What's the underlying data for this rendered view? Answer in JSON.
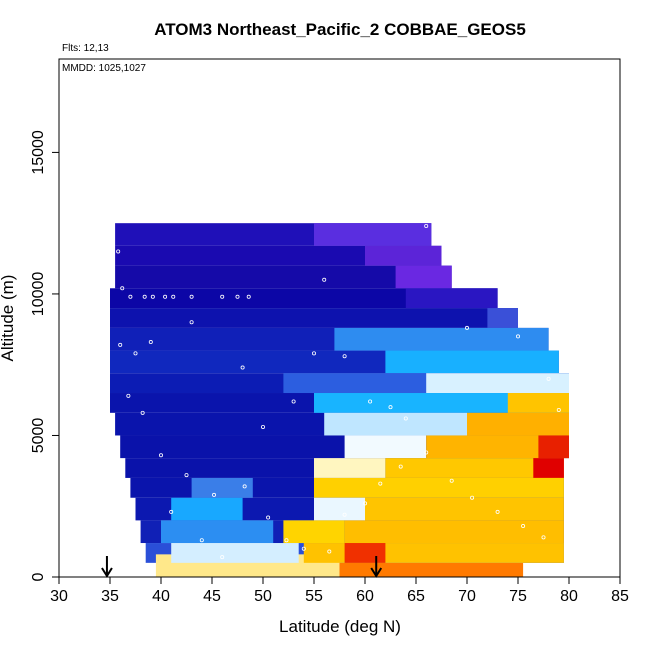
{
  "chart_data": {
    "type": "heatmap",
    "title": "ATOM3 Northeast_Pacific_2 COBBAE_GEOS5",
    "annotations": {
      "flights": "Flts: 12,13",
      "dates": "MMDD: 1025,1027"
    },
    "xlabel": "Latitude (deg N)",
    "ylabel": "Altitude (m)",
    "xlim": [
      30,
      85
    ],
    "ylim": [
      0,
      18300
    ],
    "x_ticks": [
      "30",
      "35",
      "40",
      "45",
      "50",
      "55",
      "60",
      "65",
      "70",
      "75",
      "80",
      "85"
    ],
    "y_ticks": [
      "0",
      "5000",
      "10000",
      "15000"
    ],
    "grid": false,
    "legend": "none",
    "colors": {
      "navy": "#0000aa",
      "blue": "#1a3fd6",
      "cyan": "#00b0ff",
      "pale": "#d8f1ff",
      "yellow": "#ffd700",
      "orange": "#ff8c00",
      "red": "#e00000",
      "purple": "#8a2be2"
    },
    "cells_note": "curtain cells: latitude band [lat_min, lat_max], altitude band [alt_min, alt_max] in metres, colour",
    "cells": [
      [
        35.5,
        66.5,
        11700,
        12500,
        "#1f10b8"
      ],
      [
        35.5,
        67.5,
        11000,
        11700,
        "#1a0ab0"
      ],
      [
        35.5,
        68.5,
        10200,
        11000,
        "#150aa8"
      ],
      [
        35.0,
        73.0,
        9500,
        10200,
        "#0c06a6"
      ],
      [
        35.0,
        75.0,
        8800,
        9500,
        "#0d12ae"
      ],
      [
        35.0,
        78.0,
        8000,
        8800,
        "#1020b8"
      ],
      [
        35.0,
        79.0,
        7200,
        8000,
        "#1028be"
      ],
      [
        35.0,
        80.0,
        6500,
        7200,
        "#0c1cb4"
      ],
      [
        35.0,
        80.0,
        5800,
        6500,
        "#0a14ac"
      ],
      [
        35.5,
        80.0,
        5000,
        5800,
        "#0a14ac"
      ],
      [
        36.0,
        80.0,
        4200,
        5000,
        "#0a12aa"
      ],
      [
        36.5,
        79.5,
        3500,
        4200,
        "#0a12aa"
      ],
      [
        37.0,
        79.5,
        2800,
        3500,
        "#0a14ac"
      ],
      [
        37.5,
        79.5,
        2000,
        2800,
        "#0c18b0"
      ],
      [
        38.0,
        79.5,
        1200,
        2000,
        "#1020b6"
      ],
      [
        38.5,
        79.5,
        500,
        1200,
        "#2a4fd8"
      ],
      [
        39.5,
        57.5,
        0,
        800,
        "#ffe88a"
      ],
      [
        57.5,
        75.5,
        0,
        500,
        "#ff7a00"
      ],
      [
        55.0,
        66.5,
        11700,
        12500,
        "#5a2ee0"
      ],
      [
        60.0,
        67.5,
        11000,
        11700,
        "#5c24d8"
      ],
      [
        63.0,
        68.5,
        10200,
        11000,
        "#6a28e2"
      ],
      [
        64.0,
        73.0,
        9500,
        10200,
        "#2a16c2"
      ],
      [
        72.0,
        75.0,
        8800,
        9500,
        "#3a50d8"
      ],
      [
        57.0,
        78.0,
        8000,
        8800,
        "#2e8cf0"
      ],
      [
        62.0,
        79.0,
        7200,
        8000,
        "#18b0ff"
      ],
      [
        52.0,
        80.0,
        6500,
        7200,
        "#2c5ee0"
      ],
      [
        66.0,
        80.0,
        6500,
        7200,
        "#d8f1ff"
      ],
      [
        55.0,
        80.0,
        5800,
        6500,
        "#18b4ff"
      ],
      [
        74.0,
        80.0,
        5800,
        6500,
        "#ffc400"
      ],
      [
        56.0,
        70.0,
        5000,
        5800,
        "#bfe6ff"
      ],
      [
        70.0,
        80.0,
        5000,
        5800,
        "#ffb000"
      ],
      [
        58.0,
        66.0,
        4200,
        5000,
        "#f2faff"
      ],
      [
        66.0,
        80.0,
        4200,
        5000,
        "#ffb400"
      ],
      [
        77.0,
        80.0,
        4200,
        5000,
        "#e82000"
      ],
      [
        55.0,
        62.0,
        3500,
        4200,
        "#fff6c0"
      ],
      [
        62.0,
        79.5,
        3500,
        4200,
        "#ffc800"
      ],
      [
        76.5,
        79.5,
        3500,
        4200,
        "#e00000"
      ],
      [
        43.0,
        49.0,
        2800,
        3500,
        "#3a7ee8"
      ],
      [
        55.0,
        79.5,
        2800,
        3500,
        "#ffd000"
      ],
      [
        41.0,
        48.0,
        2000,
        2800,
        "#18a8ff"
      ],
      [
        55.0,
        60.0,
        2000,
        2800,
        "#eaf7ff"
      ],
      [
        60.0,
        79.5,
        2000,
        2800,
        "#ffc400"
      ],
      [
        40.0,
        51.0,
        1200,
        2000,
        "#2c8ef2"
      ],
      [
        52.0,
        58.0,
        1200,
        2000,
        "#ffd400"
      ],
      [
        58.0,
        79.5,
        1200,
        2000,
        "#ffbe00"
      ],
      [
        41.0,
        53.5,
        500,
        1200,
        "#d4eeff"
      ],
      [
        54.0,
        79.5,
        500,
        1200,
        "#ffc200"
      ],
      [
        58.0,
        62.0,
        500,
        1200,
        "#f03000"
      ]
    ],
    "observation_points": [
      [
        35.3,
        12400
      ],
      [
        35.8,
        11500
      ],
      [
        36.2,
        10200
      ],
      [
        37.0,
        9900
      ],
      [
        38.4,
        9900
      ],
      [
        39.2,
        9900
      ],
      [
        40.4,
        9900
      ],
      [
        41.2,
        9900
      ],
      [
        43.0,
        9900
      ],
      [
        46.0,
        9900
      ],
      [
        47.5,
        9900
      ],
      [
        48.6,
        9900
      ],
      [
        36.0,
        8200
      ],
      [
        37.5,
        7900
      ],
      [
        39.0,
        8300
      ],
      [
        43.0,
        9000
      ],
      [
        48.0,
        7400
      ],
      [
        56.0,
        10500
      ],
      [
        58.0,
        7800
      ],
      [
        60.5,
        6200
      ],
      [
        62.5,
        6000
      ],
      [
        64.0,
        5600
      ],
      [
        66.0,
        12400
      ],
      [
        67.0,
        12100
      ],
      [
        36.8,
        6400
      ],
      [
        38.2,
        5800
      ],
      [
        40.0,
        4300
      ],
      [
        42.5,
        3600
      ],
      [
        45.2,
        2900
      ],
      [
        48.2,
        3200
      ],
      [
        50.5,
        2100
      ],
      [
        52.3,
        1300
      ],
      [
        54.0,
        1000
      ],
      [
        56.5,
        900
      ],
      [
        60.0,
        2600
      ],
      [
        61.5,
        3300
      ],
      [
        63.5,
        3900
      ],
      [
        66.0,
        4400
      ],
      [
        68.5,
        3400
      ],
      [
        70.5,
        2800
      ],
      [
        73.0,
        2300
      ],
      [
        75.5,
        1800
      ],
      [
        77.5,
        1400
      ],
      [
        79.0,
        5900
      ],
      [
        78.0,
        7000
      ],
      [
        75.0,
        8500
      ],
      [
        70.0,
        8800
      ],
      [
        58.0,
        2200
      ],
      [
        44.0,
        1300
      ],
      [
        46.0,
        700
      ],
      [
        41.0,
        2300
      ],
      [
        50.0,
        5300
      ],
      [
        53.0,
        6200
      ],
      [
        55.0,
        7900
      ]
    ],
    "arrows_at_latitude": [
      34.7,
      61.1
    ]
  }
}
